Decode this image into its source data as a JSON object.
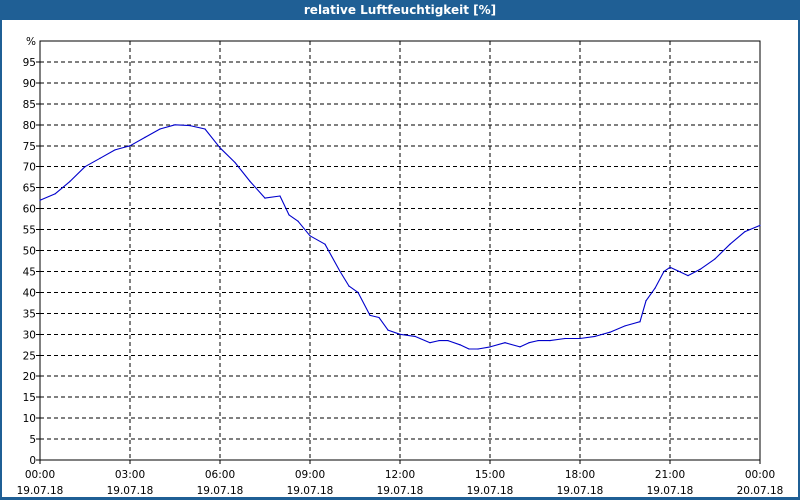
{
  "window": {
    "title": "relative Luftfeuchtigkeit [%]"
  },
  "colors": {
    "titlebar": "#1f5f95",
    "series": "#0000cc",
    "grid": "#000000"
  },
  "chart_data": {
    "type": "line",
    "title": "relative Luftfeuchtigkeit [%]",
    "ylabel": "%",
    "xlabel": "",
    "ylim": [
      0,
      100
    ],
    "grid": true,
    "yticks": [
      "0",
      "5",
      "10",
      "15",
      "20",
      "25",
      "30",
      "35",
      "40",
      "45",
      "50",
      "55",
      "60",
      "65",
      "70",
      "75",
      "80",
      "85",
      "90",
      "95"
    ],
    "xticks": [
      {
        "time": "00:00",
        "date": "19.07.18"
      },
      {
        "time": "03:00",
        "date": "19.07.18"
      },
      {
        "time": "06:00",
        "date": "19.07.18"
      },
      {
        "time": "09:00",
        "date": "19.07.18"
      },
      {
        "time": "12:00",
        "date": "19.07.18"
      },
      {
        "time": "15:00",
        "date": "19.07.18"
      },
      {
        "time": "18:00",
        "date": "19.07.18"
      },
      {
        "time": "21:00",
        "date": "19.07.18"
      },
      {
        "time": "00:00",
        "date": "20.07.18"
      }
    ],
    "x_hours": [
      0,
      0.5,
      1,
      1.5,
      2,
      2.5,
      3,
      3.5,
      4,
      4.5,
      5,
      5.5,
      6,
      6.5,
      7,
      7.5,
      8,
      8.3,
      8.6,
      9,
      9.5,
      10,
      10.3,
      10.6,
      11,
      11.3,
      11.6,
      12,
      12.5,
      13,
      13.3,
      13.6,
      14,
      14.3,
      14.6,
      15,
      15.5,
      16,
      16.3,
      16.6,
      17,
      17.5,
      18,
      18.5,
      19,
      19.5,
      20,
      20.2,
      20.5,
      20.8,
      21,
      21.3,
      21.6,
      22,
      22.5,
      23,
      23.5,
      24
    ],
    "series": [
      {
        "values": [
          62,
          63.5,
          66.5,
          70,
          72,
          74,
          75,
          77,
          79,
          80,
          79.8,
          79,
          74.5,
          71,
          66.5,
          62.5,
          63,
          58.5,
          57,
          53.5,
          51.5,
          45,
          41.5,
          40,
          34.5,
          34,
          31,
          30,
          29.5,
          28,
          28.5,
          28.5,
          27.5,
          26.5,
          26.5,
          27,
          28,
          27,
          28,
          28.5,
          28.5,
          29,
          29,
          29.5,
          30.5,
          32,
          33,
          38,
          41,
          45,
          46,
          45,
          44,
          45.5,
          48,
          51.5,
          54.5,
          56
        ]
      }
    ]
  }
}
